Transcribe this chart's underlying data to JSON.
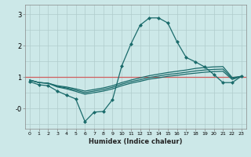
{
  "xlabel": "Humidex (Indice chaleur)",
  "bg_color": "#cce8e8",
  "line_color": "#1a6b6b",
  "grid_color": "#b0cccc",
  "hline_color": "#d06060",
  "xlim": [
    -0.5,
    23.5
  ],
  "ylim": [
    -0.65,
    3.3
  ],
  "line1_x": [
    0,
    1,
    2,
    3,
    4,
    5,
    6,
    7,
    8,
    9,
    10,
    11,
    12,
    13,
    14,
    15,
    16,
    17,
    18,
    19,
    20,
    21,
    22,
    23
  ],
  "line1_y": [
    0.85,
    0.75,
    0.72,
    0.55,
    0.42,
    0.3,
    -0.42,
    -0.12,
    -0.1,
    0.28,
    1.35,
    2.05,
    2.65,
    2.88,
    2.88,
    2.72,
    2.12,
    1.62,
    1.48,
    1.32,
    1.08,
    0.82,
    0.82,
    1.02
  ],
  "line2_x": [
    0,
    1,
    2,
    3,
    4,
    5,
    6,
    7,
    8,
    9,
    10,
    11,
    12,
    13,
    14,
    15,
    16,
    17,
    18,
    19,
    20,
    21,
    22,
    23
  ],
  "line2_y": [
    0.9,
    0.82,
    0.8,
    0.72,
    0.68,
    0.62,
    0.55,
    0.6,
    0.65,
    0.72,
    0.82,
    0.9,
    0.97,
    1.04,
    1.09,
    1.14,
    1.18,
    1.22,
    1.27,
    1.3,
    1.32,
    1.33,
    0.98,
    1.02
  ],
  "line3_x": [
    0,
    1,
    2,
    3,
    4,
    5,
    6,
    7,
    8,
    9,
    10,
    11,
    12,
    13,
    14,
    15,
    16,
    17,
    18,
    19,
    20,
    21,
    22,
    23
  ],
  "line3_y": [
    0.9,
    0.82,
    0.8,
    0.7,
    0.65,
    0.58,
    0.5,
    0.55,
    0.6,
    0.67,
    0.77,
    0.85,
    0.91,
    0.98,
    1.03,
    1.08,
    1.11,
    1.15,
    1.19,
    1.22,
    1.24,
    1.25,
    0.95,
    1.02
  ],
  "line4_x": [
    0,
    1,
    2,
    3,
    4,
    5,
    6,
    7,
    8,
    9,
    10,
    11,
    12,
    13,
    14,
    15,
    16,
    17,
    18,
    19,
    20,
    21,
    22,
    23
  ],
  "line4_y": [
    0.9,
    0.82,
    0.8,
    0.68,
    0.62,
    0.54,
    0.45,
    0.5,
    0.55,
    0.62,
    0.72,
    0.8,
    0.86,
    0.93,
    0.97,
    1.02,
    1.05,
    1.09,
    1.12,
    1.15,
    1.17,
    1.18,
    0.92,
    1.02
  ],
  "yticks": [
    3.0,
    2.0,
    1.0,
    0.0
  ],
  "ytick_labels": [
    "3",
    "2",
    "1",
    "-0"
  ],
  "xticks": [
    0,
    1,
    2,
    3,
    4,
    5,
    6,
    7,
    8,
    9,
    10,
    11,
    12,
    13,
    14,
    15,
    16,
    17,
    18,
    19,
    20,
    21,
    22,
    23
  ]
}
